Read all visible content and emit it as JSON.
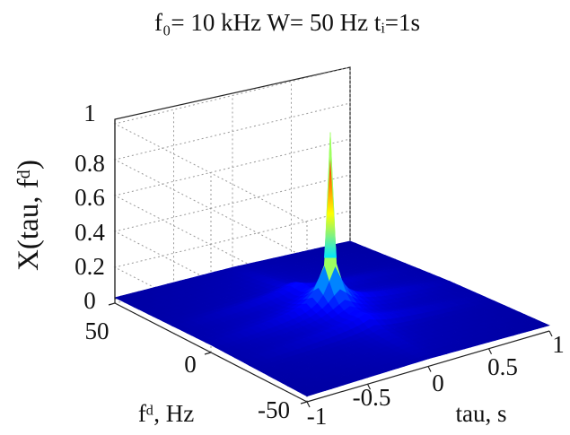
{
  "chart_data": {
    "type": "surface",
    "title": "f₀= 10 kHz   W= 50 Hz   tᵢ=1s",
    "xlabel": "tau, s",
    "ylabel": "fᵈ, Hz",
    "zlabel": "X(tau, fᵈ)",
    "xlim": [
      -1,
      1
    ],
    "ylim": [
      -50,
      50
    ],
    "zlim": [
      0,
      1
    ],
    "x_ticks": [
      "-1",
      "-0.5",
      "0",
      "0.5",
      "1"
    ],
    "y_ticks": [
      "50",
      "0",
      "-50"
    ],
    "z_ticks": [
      "0",
      "0.2",
      "0.4",
      "0.6",
      "0.8",
      "1"
    ],
    "grid": true,
    "colormap": "jet",
    "peak": {
      "tau": 0,
      "fd": 0,
      "value": 0.9
    },
    "floor_value": 0.05,
    "colors": {
      "low": "#0000c8",
      "mid": "#00e5ff",
      "high": "#ff1a00"
    }
  }
}
